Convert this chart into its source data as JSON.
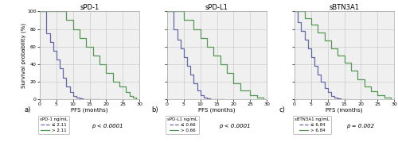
{
  "panels": [
    {
      "title": "sPD-1",
      "label": "a)",
      "legend_title": "sPD-1 ng/mL",
      "legend_low": "≤ 2.11",
      "legend_high": "> 2.11",
      "pvalue": "p < 0.0001",
      "low_x": [
        0,
        0,
        2,
        2,
        3,
        3,
        4,
        4,
        5,
        5,
        6,
        6,
        7,
        7,
        8,
        8,
        9,
        9,
        10,
        10,
        11,
        11,
        12,
        12,
        13,
        13,
        14,
        14,
        15,
        15,
        16,
        16,
        17,
        17,
        18
      ],
      "low_y": [
        100,
        100,
        100,
        75,
        75,
        65,
        65,
        55,
        55,
        45,
        45,
        35,
        35,
        25,
        25,
        15,
        15,
        8,
        8,
        4,
        4,
        2,
        2,
        1,
        1,
        0,
        0,
        0,
        0,
        0,
        0,
        0,
        0,
        0,
        0
      ],
      "high_x": [
        0,
        0,
        8,
        8,
        10,
        10,
        12,
        12,
        14,
        14,
        16,
        16,
        18,
        18,
        20,
        20,
        22,
        22,
        24,
        24,
        26,
        26,
        27,
        27,
        28,
        28,
        29,
        29,
        30
      ],
      "high_y": [
        100,
        100,
        100,
        90,
        90,
        80,
        80,
        70,
        70,
        60,
        60,
        50,
        50,
        40,
        40,
        30,
        30,
        20,
        20,
        15,
        15,
        8,
        8,
        4,
        4,
        2,
        2,
        0,
        0
      ],
      "low_color": "#6666aa",
      "high_color": "#559955"
    },
    {
      "title": "sPD-L1",
      "label": "b)",
      "legend_title": "sPD-L1 ng/mL",
      "legend_low": "≤ 0.66",
      "legend_high": "> 0.66",
      "pvalue": "p < 0.0001",
      "low_x": [
        0,
        0,
        2,
        2,
        3,
        3,
        4,
        4,
        5,
        5,
        6,
        6,
        7,
        7,
        8,
        8,
        9,
        9,
        10,
        10,
        11,
        11,
        12,
        12,
        13,
        13,
        14,
        14,
        15,
        15,
        16,
        16,
        17
      ],
      "low_y": [
        100,
        100,
        100,
        80,
        80,
        68,
        68,
        58,
        58,
        48,
        48,
        38,
        38,
        28,
        28,
        18,
        18,
        10,
        10,
        5,
        5,
        2,
        2,
        1,
        1,
        0,
        0,
        0,
        0,
        0,
        0,
        0,
        0
      ],
      "high_x": [
        0,
        0,
        5,
        5,
        8,
        8,
        10,
        10,
        12,
        12,
        14,
        14,
        16,
        16,
        18,
        18,
        20,
        20,
        22,
        22,
        25,
        25,
        27,
        27,
        29,
        29,
        30
      ],
      "high_y": [
        100,
        100,
        100,
        90,
        90,
        80,
        80,
        70,
        70,
        60,
        60,
        50,
        50,
        40,
        40,
        30,
        30,
        18,
        18,
        10,
        10,
        5,
        5,
        2,
        2,
        0,
        0
      ],
      "low_color": "#6666aa",
      "high_color": "#559955"
    },
    {
      "title": "sBTN3A1",
      "label": "c)",
      "legend_title": "sBTN3A1 ng/mL",
      "legend_low": "≤ 6.84",
      "legend_high": "> 6.84",
      "pvalue": "p = 0.002",
      "low_x": [
        0,
        0,
        1,
        1,
        2,
        2,
        3,
        3,
        4,
        4,
        5,
        5,
        6,
        6,
        7,
        7,
        8,
        8,
        9,
        9,
        10,
        10,
        11,
        11,
        12,
        12,
        13,
        13,
        14,
        14,
        15,
        15,
        16
      ],
      "low_y": [
        100,
        100,
        100,
        88,
        88,
        78,
        78,
        68,
        68,
        58,
        58,
        48,
        48,
        38,
        38,
        28,
        28,
        20,
        20,
        13,
        13,
        8,
        8,
        4,
        4,
        2,
        2,
        1,
        1,
        0,
        0,
        0,
        0
      ],
      "high_x": [
        0,
        0,
        3,
        3,
        5,
        5,
        7,
        7,
        9,
        9,
        11,
        11,
        13,
        13,
        15,
        15,
        17,
        17,
        19,
        19,
        21,
        21,
        23,
        23,
        25,
        25,
        27,
        27,
        29,
        29,
        30
      ],
      "high_y": [
        100,
        100,
        100,
        92,
        92,
        85,
        85,
        76,
        76,
        67,
        67,
        58,
        58,
        50,
        50,
        42,
        42,
        33,
        33,
        23,
        23,
        15,
        15,
        9,
        9,
        5,
        5,
        2,
        2,
        0,
        0
      ],
      "low_color": "#6666aa",
      "high_color": "#559955"
    }
  ],
  "xlim": [
    0,
    30
  ],
  "ylim": [
    0,
    100
  ],
  "xticks": [
    0,
    5,
    10,
    15,
    20,
    25,
    30
  ],
  "yticks": [
    0,
    20,
    40,
    60,
    80,
    100
  ],
  "xlabel": "PFS (months)",
  "ylabel": "Survival probability (%)",
  "grid_color": "#cccccc",
  "bg_color": "#f0f0f0"
}
